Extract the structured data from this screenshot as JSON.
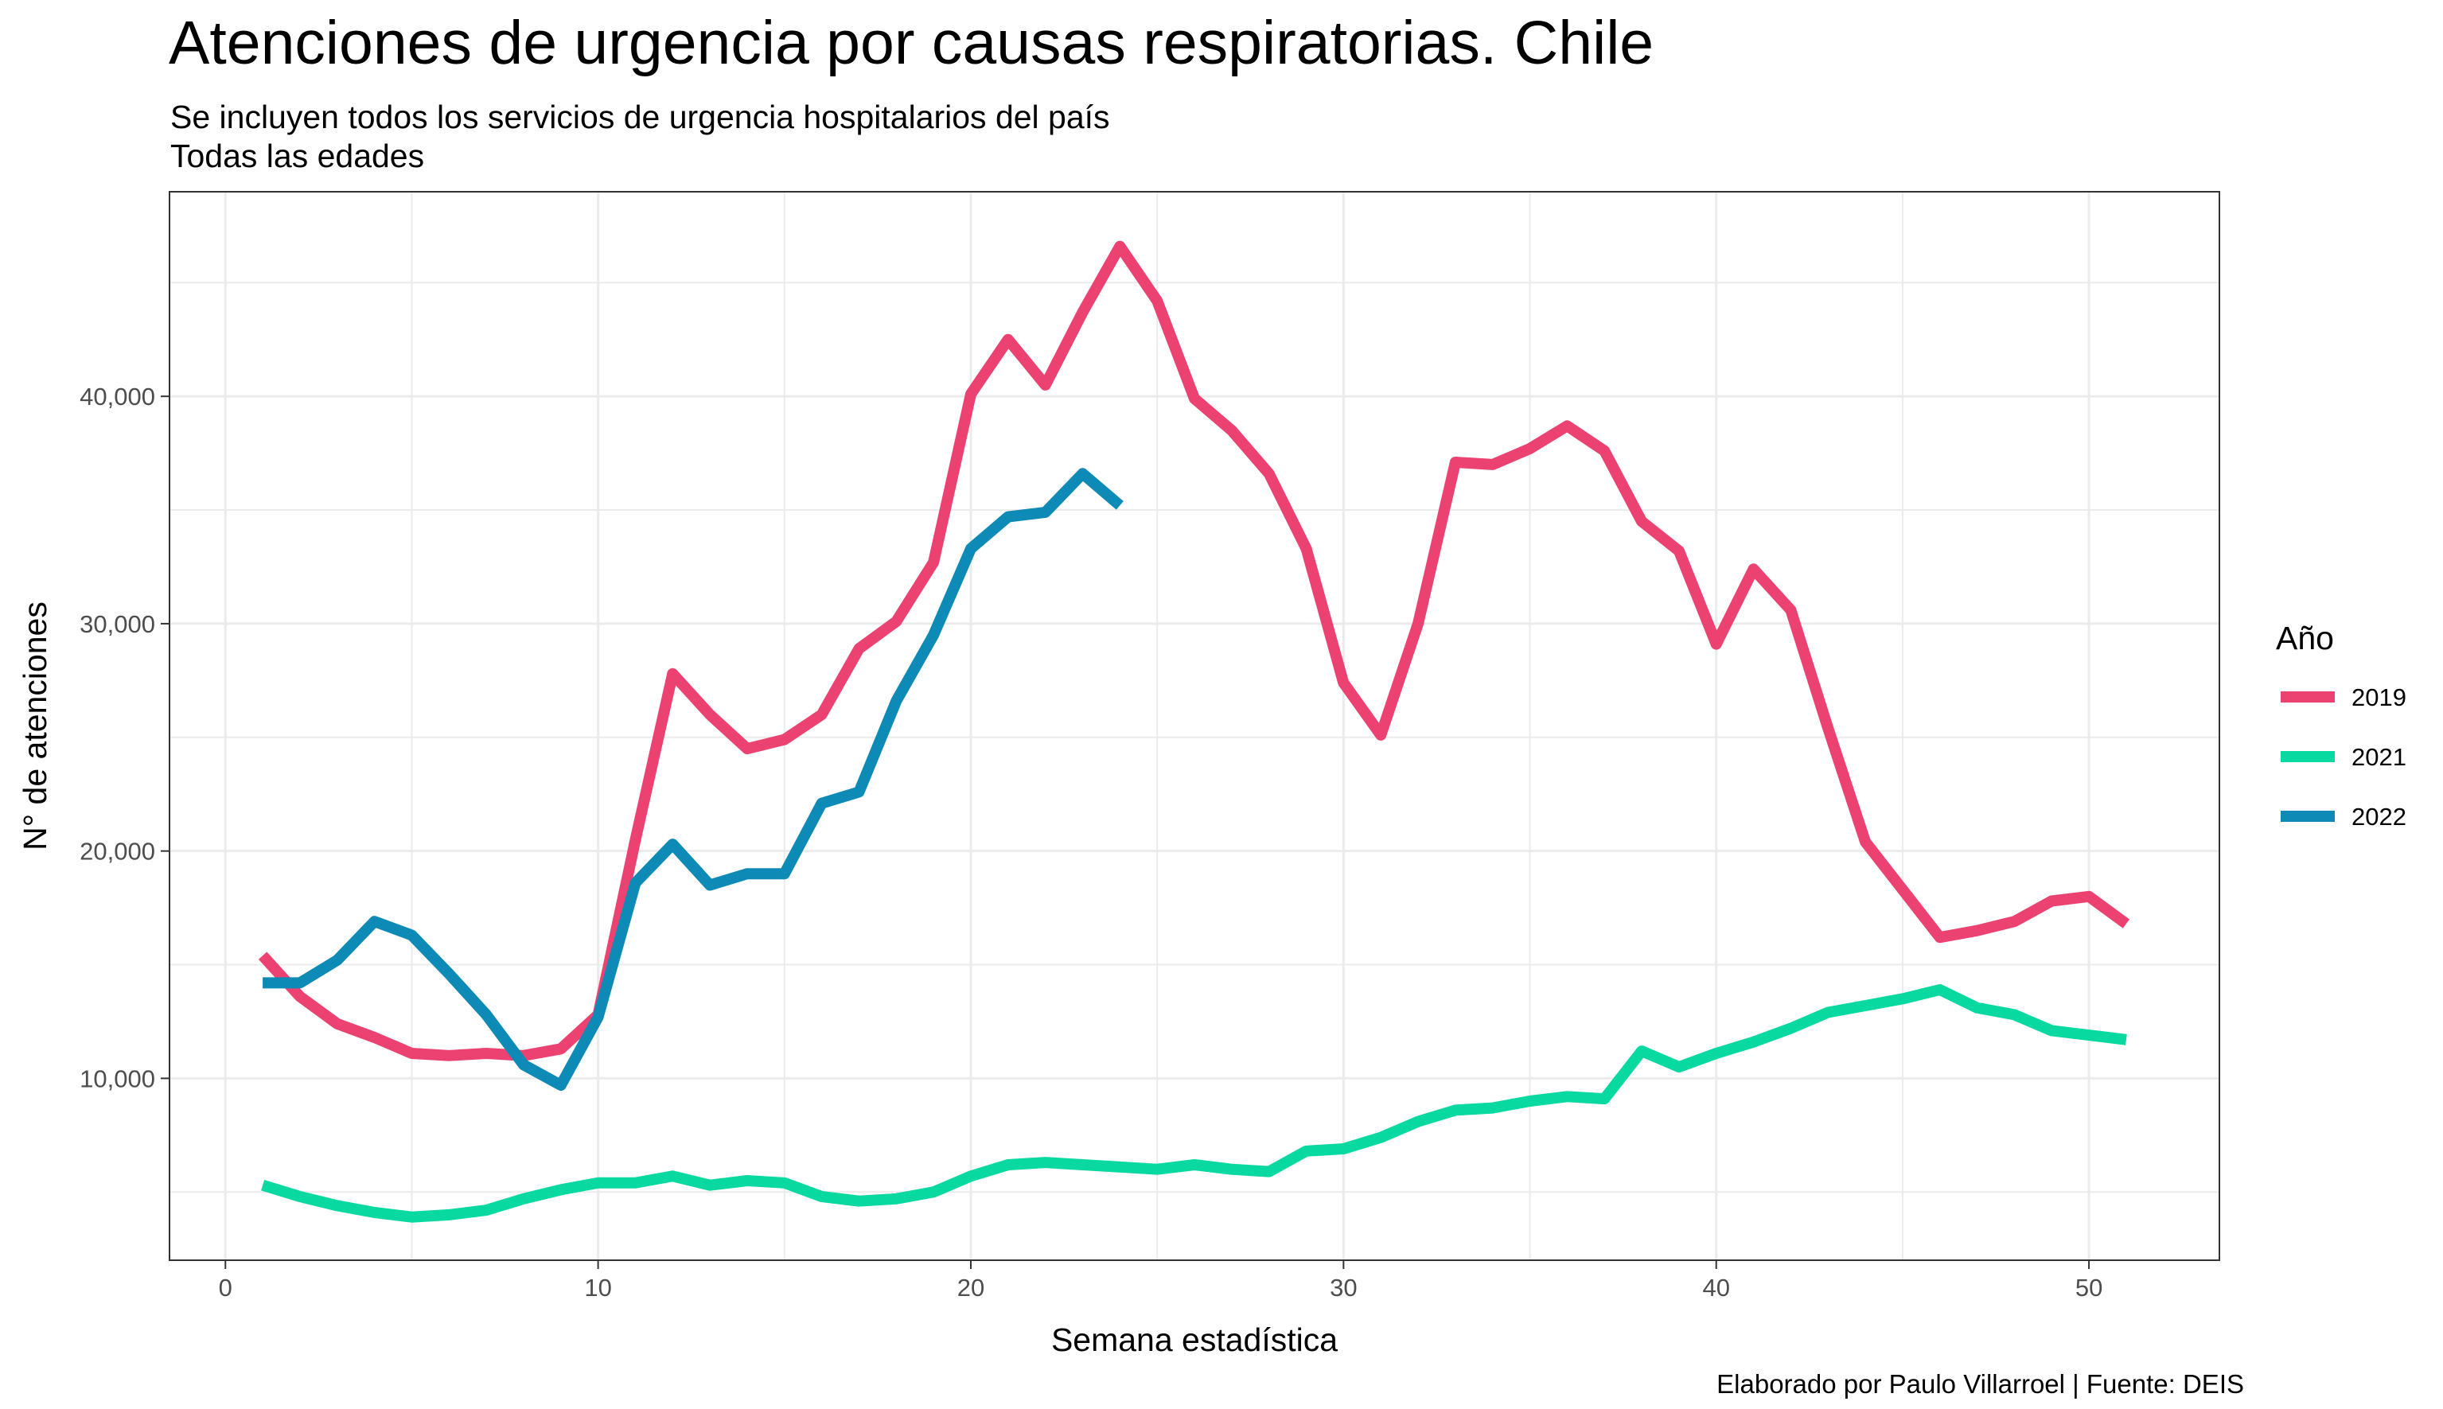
{
  "chart_data": {
    "type": "line",
    "title": "Atenciones de urgencia por causas respiratorias. Chile",
    "subtitle_lines": [
      "Se incluyen todos los servicios de urgencia hospitalarios del país",
      "Todas las edades"
    ],
    "caption": "Elaborado por Paulo Villarroel | Fuente: DEIS",
    "xlabel": "Semana estadística",
    "ylabel": "N° de atenciones",
    "xlim": [
      -1.5,
      53.5
    ],
    "ylim": [
      2000,
      49000
    ],
    "x_ticks": [
      0,
      10,
      20,
      30,
      40,
      50
    ],
    "x_tick_labels": [
      "0",
      "10",
      "20",
      "30",
      "40",
      "50"
    ],
    "y_ticks": [
      10000,
      20000,
      30000,
      40000
    ],
    "y_tick_labels": [
      "10,000",
      "20,000",
      "30,000",
      "40,000"
    ],
    "grid": true,
    "legend": {
      "title": "Año",
      "position": "right"
    },
    "series": [
      {
        "name": "2019",
        "color": "#ec4272",
        "x": [
          1,
          2,
          3,
          4,
          5,
          6,
          7,
          8,
          9,
          10,
          11,
          12,
          13,
          14,
          15,
          16,
          17,
          18,
          19,
          20,
          21,
          22,
          23,
          24,
          25,
          26,
          27,
          28,
          29,
          30,
          31,
          32,
          33,
          34,
          35,
          36,
          37,
          38,
          39,
          40,
          41,
          42,
          43,
          44,
          45,
          46,
          47,
          48,
          49,
          50,
          51
        ],
        "y": [
          15400,
          13600,
          12400,
          11800,
          11100,
          11000,
          11100,
          11000,
          11300,
          12800,
          20500,
          27800,
          26000,
          24500,
          24900,
          26000,
          28900,
          30100,
          32700,
          40100,
          42500,
          40500,
          43700,
          46600,
          44200,
          39900,
          38500,
          36600,
          33300,
          27400,
          25100,
          30000,
          37100,
          37000,
          37700,
          38700,
          37600,
          34500,
          33200,
          29100,
          32400,
          30600,
          25400,
          20400,
          18300,
          16200,
          16500,
          16900,
          17800,
          18000,
          16800
        ]
      },
      {
        "name": "2021",
        "color": "#07d9a0",
        "x": [
          1,
          2,
          3,
          4,
          5,
          6,
          7,
          8,
          9,
          10,
          11,
          12,
          13,
          14,
          15,
          16,
          17,
          18,
          19,
          20,
          21,
          22,
          23,
          24,
          25,
          26,
          27,
          28,
          29,
          30,
          31,
          32,
          33,
          34,
          35,
          36,
          37,
          38,
          39,
          40,
          41,
          42,
          43,
          44,
          45,
          46,
          47,
          48,
          49,
          50,
          51
        ],
        "y": [
          5300,
          4800,
          4400,
          4100,
          3900,
          4000,
          4200,
          4700,
          5100,
          5400,
          5400,
          5700,
          5300,
          5500,
          5400,
          4800,
          4600,
          4700,
          5000,
          5700,
          6200,
          6300,
          6200,
          6100,
          6000,
          6200,
          6000,
          5900,
          6800,
          6900,
          7400,
          8100,
          8600,
          8700,
          9000,
          9200,
          9100,
          11200,
          10500,
          11100,
          11600,
          12200,
          12900,
          13200,
          13500,
          13900,
          13100,
          12800,
          12100,
          11900,
          11700
        ]
      },
      {
        "name": "2022",
        "color": "#0d8ab5",
        "x": [
          1,
          2,
          3,
          4,
          5,
          6,
          7,
          8,
          9,
          10,
          11,
          12,
          13,
          14,
          15,
          16,
          17,
          18,
          19,
          20,
          21,
          22,
          23,
          24
        ],
        "y": [
          14200,
          14200,
          15200,
          16900,
          16300,
          14600,
          12800,
          10600,
          9700,
          12700,
          18600,
          20300,
          18500,
          19000,
          19000,
          22100,
          22600,
          26600,
          29500,
          33300,
          34700,
          34900,
          36600,
          35200
        ]
      }
    ]
  }
}
